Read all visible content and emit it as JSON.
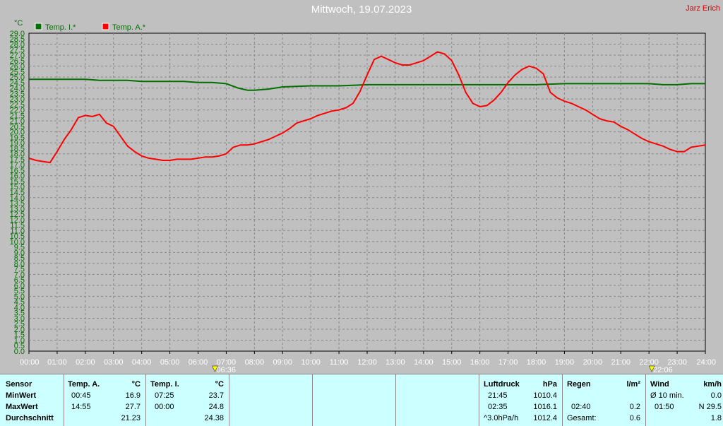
{
  "header": {
    "title": "Mittwoch, 19.07.2023",
    "author": "Jarz Erich"
  },
  "colors": {
    "inside": "#007000",
    "outside": "#ff0000",
    "axis_text": "#007000",
    "grid": "#888888"
  },
  "chart_data": {
    "type": "line",
    "ylabel": "°C",
    "ylim": [
      0,
      29
    ],
    "xlim": [
      0,
      24
    ],
    "x_ticks": [
      "00:00",
      "01:00",
      "02:00",
      "03:00",
      "04:00",
      "05:00",
      "06:00",
      "07:00",
      "08:00",
      "09:00",
      "10:00",
      "11:00",
      "12:00",
      "13:00",
      "14:00",
      "15:00",
      "16:00",
      "17:00",
      "18:00",
      "19:00",
      "20:00",
      "21:00",
      "22:00",
      "23:00",
      "24:00"
    ],
    "y_ticks": [
      "0.0",
      "0.5",
      "1.0",
      "1.5",
      "2.0",
      "2.5",
      "3.0",
      "3.5",
      "4.0",
      "4.5",
      "5.0",
      "5.5",
      "6.0",
      "6.5",
      "7.0",
      "7.5",
      "8.0",
      "8.5",
      "9.0",
      "9.5",
      "10.0",
      "10.5",
      "11.0",
      "11.5",
      "12.0",
      "12.5",
      "13.0",
      "13.5",
      "14.0",
      "14.5",
      "15.0",
      "15.5",
      "16.0",
      "16.5",
      "17.0",
      "17.5",
      "18.0",
      "18.5",
      "19.0",
      "19.5",
      "20.0",
      "20.5",
      "21.0",
      "21.5",
      "22.0",
      "22.5",
      "23.0",
      "23.5",
      "24.0",
      "24.5",
      "25.0",
      "25.5",
      "26.0",
      "26.5",
      "27.0",
      "27.5",
      "28.0",
      "28.5",
      "29.0"
    ],
    "legend_position": "top-left",
    "grid": true,
    "sunrise": "06:36",
    "sunset": "22:06",
    "series": [
      {
        "name": "Temp. I.*",
        "color": "#007000",
        "x": [
          0,
          0.5,
          1,
          1.5,
          2,
          2.5,
          3,
          3.5,
          4,
          4.5,
          5,
          5.5,
          6,
          6.5,
          7,
          7.42,
          7.75,
          8,
          8.5,
          9,
          10,
          11,
          12,
          13,
          14,
          15,
          16,
          17,
          18,
          19,
          20,
          21,
          22,
          22.5,
          23,
          23.5,
          24
        ],
        "y": [
          24.8,
          24.8,
          24.8,
          24.8,
          24.8,
          24.7,
          24.7,
          24.7,
          24.6,
          24.6,
          24.6,
          24.6,
          24.5,
          24.5,
          24.4,
          24.0,
          23.8,
          23.8,
          23.9,
          24.1,
          24.2,
          24.2,
          24.3,
          24.3,
          24.3,
          24.3,
          24.3,
          24.3,
          24.3,
          24.4,
          24.4,
          24.4,
          24.4,
          24.3,
          24.3,
          24.4,
          24.4
        ]
      },
      {
        "name": "Temp. A.*",
        "color": "#ff0000",
        "x": [
          0,
          0.25,
          0.5,
          0.75,
          1,
          1.25,
          1.5,
          1.75,
          2,
          2.25,
          2.5,
          2.75,
          3,
          3.25,
          3.5,
          3.75,
          4,
          4.25,
          4.5,
          4.75,
          5,
          5.25,
          5.5,
          5.75,
          6,
          6.25,
          6.5,
          6.75,
          7,
          7.25,
          7.5,
          7.75,
          8,
          8.25,
          8.5,
          8.75,
          9,
          9.25,
          9.5,
          9.75,
          10,
          10.25,
          10.5,
          10.75,
          11,
          11.25,
          11.5,
          11.75,
          12,
          12.25,
          12.5,
          12.75,
          13,
          13.25,
          13.5,
          13.75,
          14,
          14.25,
          14.5,
          14.75,
          15,
          15.25,
          15.5,
          15.75,
          16,
          16.25,
          16.5,
          16.75,
          17,
          17.25,
          17.5,
          17.75,
          18,
          18.25,
          18.5,
          18.75,
          19,
          19.25,
          19.5,
          19.75,
          20,
          20.25,
          20.5,
          20.75,
          21,
          21.25,
          21.5,
          21.75,
          22,
          22.25,
          22.5,
          22.75,
          23,
          23.25,
          23.5,
          23.75,
          24
        ],
        "y": [
          17.6,
          17.4,
          17.3,
          17.2,
          18.2,
          19.3,
          20.2,
          21.3,
          21.5,
          21.4,
          21.6,
          20.8,
          20.5,
          19.6,
          18.7,
          18.2,
          17.8,
          17.6,
          17.5,
          17.4,
          17.4,
          17.5,
          17.5,
          17.5,
          17.6,
          17.7,
          17.7,
          17.8,
          18.0,
          18.6,
          18.8,
          18.8,
          18.9,
          19.1,
          19.3,
          19.6,
          19.9,
          20.3,
          20.8,
          21.0,
          21.2,
          21.5,
          21.7,
          21.9,
          22.0,
          22.2,
          22.6,
          23.7,
          25.2,
          26.6,
          26.9,
          26.6,
          26.3,
          26.1,
          26.1,
          26.3,
          26.5,
          26.9,
          27.3,
          27.1,
          26.5,
          25.2,
          23.6,
          22.6,
          22.3,
          22.4,
          22.9,
          23.6,
          24.5,
          25.2,
          25.7,
          26.0,
          25.8,
          25.3,
          23.6,
          23.1,
          22.8,
          22.6,
          22.3,
          22.0,
          21.6,
          21.2,
          21.0,
          20.9,
          20.5,
          20.2,
          19.8,
          19.4,
          19.1,
          18.9,
          18.7,
          18.4,
          18.2,
          18.2,
          18.6,
          18.7,
          18.8
        ]
      }
    ]
  },
  "table": {
    "sensor": {
      "header": "Sensor",
      "min": "MinWert",
      "max": "MaxWert",
      "avg": "Durchschnitt"
    },
    "temp_a": {
      "header": "Temp. A.",
      "unit": "°C",
      "min_time": "00:45",
      "min_val": "16.9",
      "max_time": "14:55",
      "max_val": "27.7",
      "avg": "21.23"
    },
    "temp_i": {
      "header": "Temp. I.",
      "unit": "°C",
      "min_time": "07:25",
      "min_val": "23.7",
      "max_time": "00:00",
      "max_val": "24.8",
      "avg": "24.38"
    },
    "pressure": {
      "header": "Luftdruck",
      "unit": "hPa",
      "min_time": "21:45",
      "min_val": "1010.4",
      "max_time": "02:35",
      "max_val": "1016.1",
      "trend": "^3.0hPa/h",
      "current": "1012.4"
    },
    "rain": {
      "header": "Regen",
      "unit": "l/m²",
      "time": "02:40",
      "rate": "0.2",
      "total_label": "Gesamt:",
      "total": "0.6"
    },
    "wind": {
      "header": "Wind",
      "unit": "km/h",
      "avg_label": "Ø 10 min.",
      "avg_val": "0.0",
      "max_time": "01:50",
      "max_val": "N 29.5",
      "last": "1.8"
    }
  }
}
